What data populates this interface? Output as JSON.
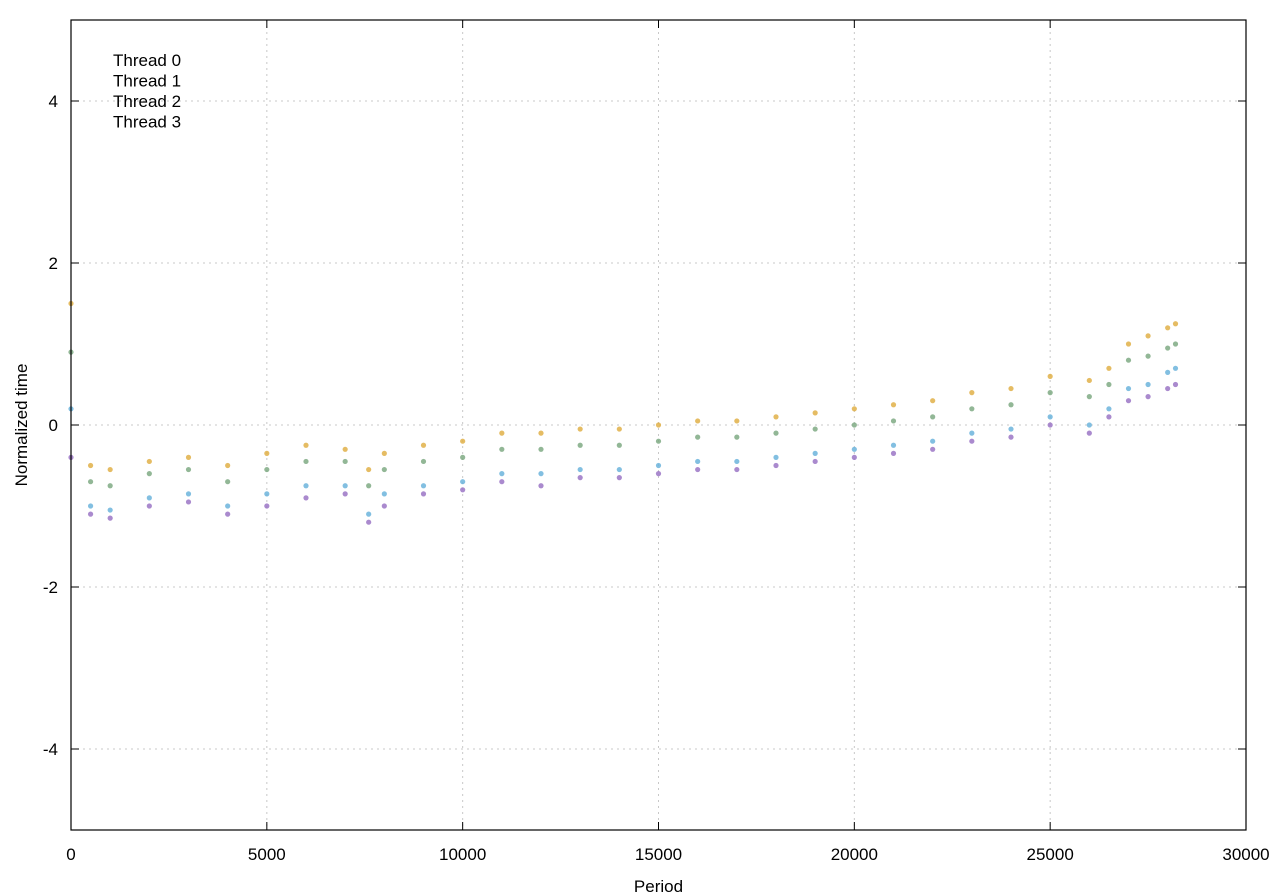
{
  "chart_data": {
    "type": "scatter",
    "title": "",
    "xlabel": "Period",
    "ylabel": "Normalized time",
    "xlim": [
      0,
      30000
    ],
    "ylim": [
      -5,
      5
    ],
    "xticks": [
      0,
      5000,
      10000,
      15000,
      20000,
      25000,
      30000
    ],
    "yticks": [
      -4,
      -2,
      0,
      2,
      4
    ],
    "grid": true,
    "legend_position": "top-left",
    "series": [
      {
        "name": "Thread 0",
        "color": "#9b76c6",
        "x": [
          0,
          500,
          1000,
          2000,
          3000,
          4000,
          5000,
          6000,
          7000,
          7600,
          8000,
          9000,
          10000,
          11000,
          12000,
          13000,
          14000,
          15000,
          16000,
          17000,
          18000,
          19000,
          20000,
          21000,
          22000,
          23000,
          24000,
          25000,
          26000,
          26500,
          27000,
          27500,
          28000,
          28200
        ],
        "y": [
          -0.4,
          -1.1,
          -1.15,
          -1.0,
          -0.95,
          -1.1,
          -1.0,
          -0.9,
          -0.85,
          -1.2,
          -1.0,
          -0.85,
          -0.8,
          -0.7,
          -0.75,
          -0.65,
          -0.65,
          -0.6,
          -0.55,
          -0.55,
          -0.5,
          -0.45,
          -0.4,
          -0.35,
          -0.3,
          -0.2,
          -0.15,
          0.0,
          -0.1,
          0.1,
          0.3,
          0.35,
          0.45,
          0.5
        ]
      },
      {
        "name": "Thread 1",
        "color": "#6cb4dc",
        "x": [
          0,
          500,
          1000,
          2000,
          3000,
          4000,
          5000,
          6000,
          7000,
          7600,
          8000,
          9000,
          10000,
          11000,
          12000,
          13000,
          14000,
          15000,
          16000,
          17000,
          18000,
          19000,
          20000,
          21000,
          22000,
          23000,
          24000,
          25000,
          26000,
          26500,
          27000,
          27500,
          28000,
          28200
        ],
        "y": [
          0.2,
          -1.0,
          -1.05,
          -0.9,
          -0.85,
          -1.0,
          -0.85,
          -0.75,
          -0.75,
          -1.1,
          -0.85,
          -0.75,
          -0.7,
          -0.6,
          -0.6,
          -0.55,
          -0.55,
          -0.5,
          -0.45,
          -0.45,
          -0.4,
          -0.35,
          -0.3,
          -0.25,
          -0.2,
          -0.1,
          -0.05,
          0.1,
          0.0,
          0.2,
          0.45,
          0.5,
          0.65,
          0.7
        ]
      },
      {
        "name": "Thread 2",
        "color": "#7faa84",
        "x": [
          0,
          500,
          1000,
          2000,
          3000,
          4000,
          5000,
          6000,
          7000,
          7600,
          8000,
          9000,
          10000,
          11000,
          12000,
          13000,
          14000,
          15000,
          16000,
          17000,
          18000,
          19000,
          20000,
          21000,
          22000,
          23000,
          24000,
          25000,
          26000,
          26500,
          27000,
          27500,
          28000,
          28200
        ],
        "y": [
          0.9,
          -0.7,
          -0.75,
          -0.6,
          -0.55,
          -0.7,
          -0.55,
          -0.45,
          -0.45,
          -0.75,
          -0.55,
          -0.45,
          -0.4,
          -0.3,
          -0.3,
          -0.25,
          -0.25,
          -0.2,
          -0.15,
          -0.15,
          -0.1,
          -0.05,
          0.0,
          0.05,
          0.1,
          0.2,
          0.25,
          0.4,
          0.35,
          0.5,
          0.8,
          0.85,
          0.95,
          1.0
        ]
      },
      {
        "name": "Thread 3",
        "color": "#e0b048",
        "x": [
          0,
          500,
          1000,
          2000,
          3000,
          4000,
          5000,
          6000,
          7000,
          7600,
          8000,
          9000,
          10000,
          11000,
          12000,
          13000,
          14000,
          15000,
          16000,
          17000,
          18000,
          19000,
          20000,
          21000,
          22000,
          23000,
          24000,
          25000,
          26000,
          26500,
          27000,
          27500,
          28000,
          28200
        ],
        "y": [
          1.5,
          -0.5,
          -0.55,
          -0.45,
          -0.4,
          -0.5,
          -0.35,
          -0.25,
          -0.3,
          -0.55,
          -0.35,
          -0.25,
          -0.2,
          -0.1,
          -0.1,
          -0.05,
          -0.05,
          0.0,
          0.05,
          0.05,
          0.1,
          0.15,
          0.2,
          0.25,
          0.3,
          0.4,
          0.45,
          0.6,
          0.55,
          0.7,
          1.0,
          1.1,
          1.2,
          1.25
        ]
      }
    ]
  }
}
